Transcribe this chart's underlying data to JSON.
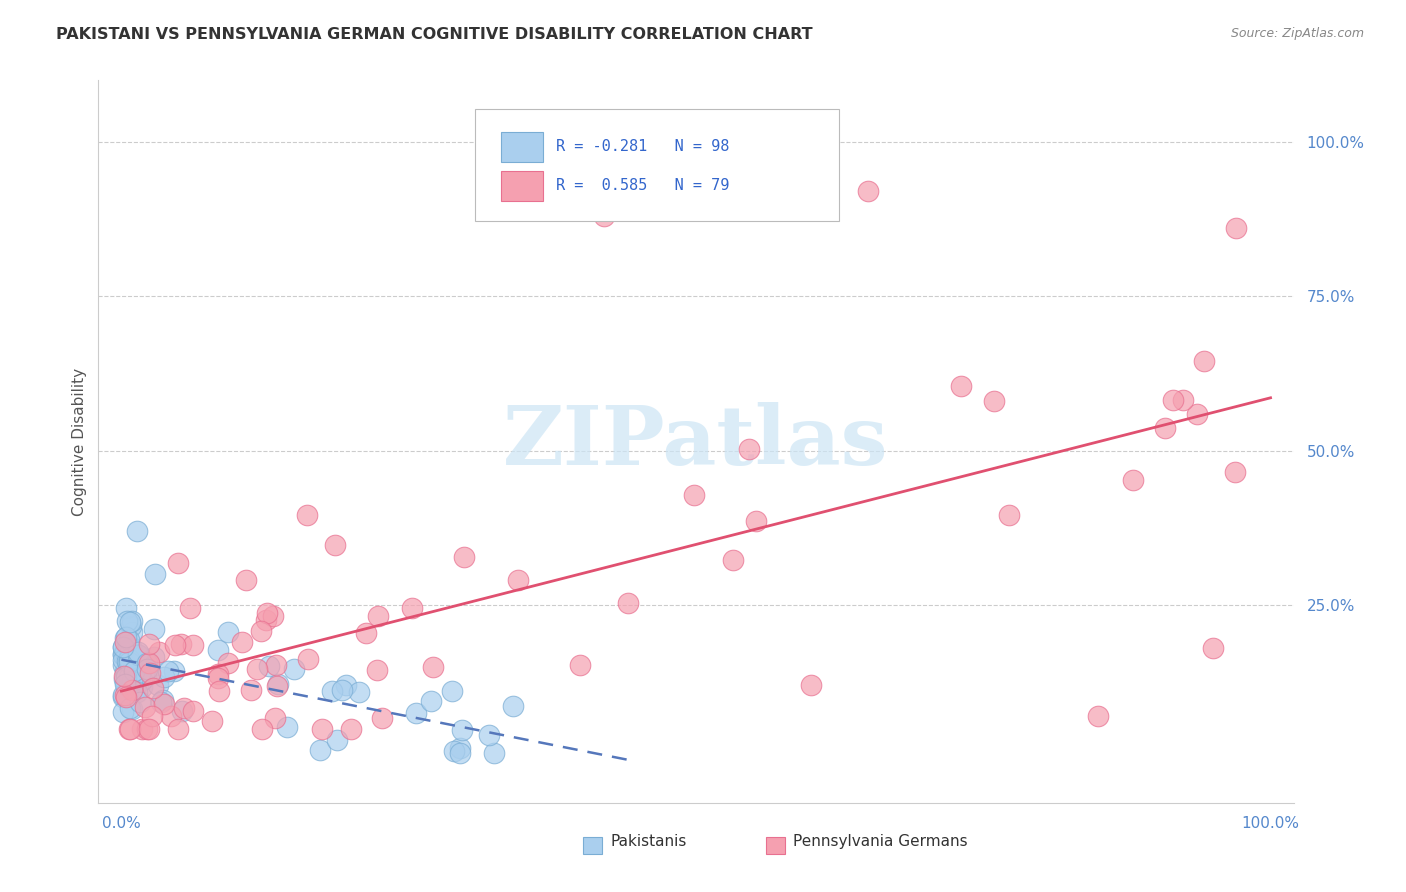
{
  "title": "PAKISTANI VS PENNSYLVANIA GERMAN COGNITIVE DISABILITY CORRELATION CHART",
  "source": "Source: ZipAtlas.com",
  "ylabel": "Cognitive Disability",
  "legend_label1": "Pakistanis",
  "legend_label2": "Pennsylvania Germans",
  "R1": -0.281,
  "N1": 98,
  "R2": 0.585,
  "N2": 79,
  "color_blue": "#aacfee",
  "color_blue_edge": "#7aadd4",
  "color_pink": "#f5a0b0",
  "color_pink_edge": "#e87090",
  "color_blue_line": "#5577bb",
  "color_pink_line": "#e05070",
  "color_blue_text": "#3366cc",
  "watermark_color": "#cce5f5",
  "background_color": "#ffffff",
  "grid_color": "#cccccc",
  "title_color": "#333333",
  "source_color": "#888888",
  "tick_color": "#5588cc",
  "ylabel_color": "#555555"
}
